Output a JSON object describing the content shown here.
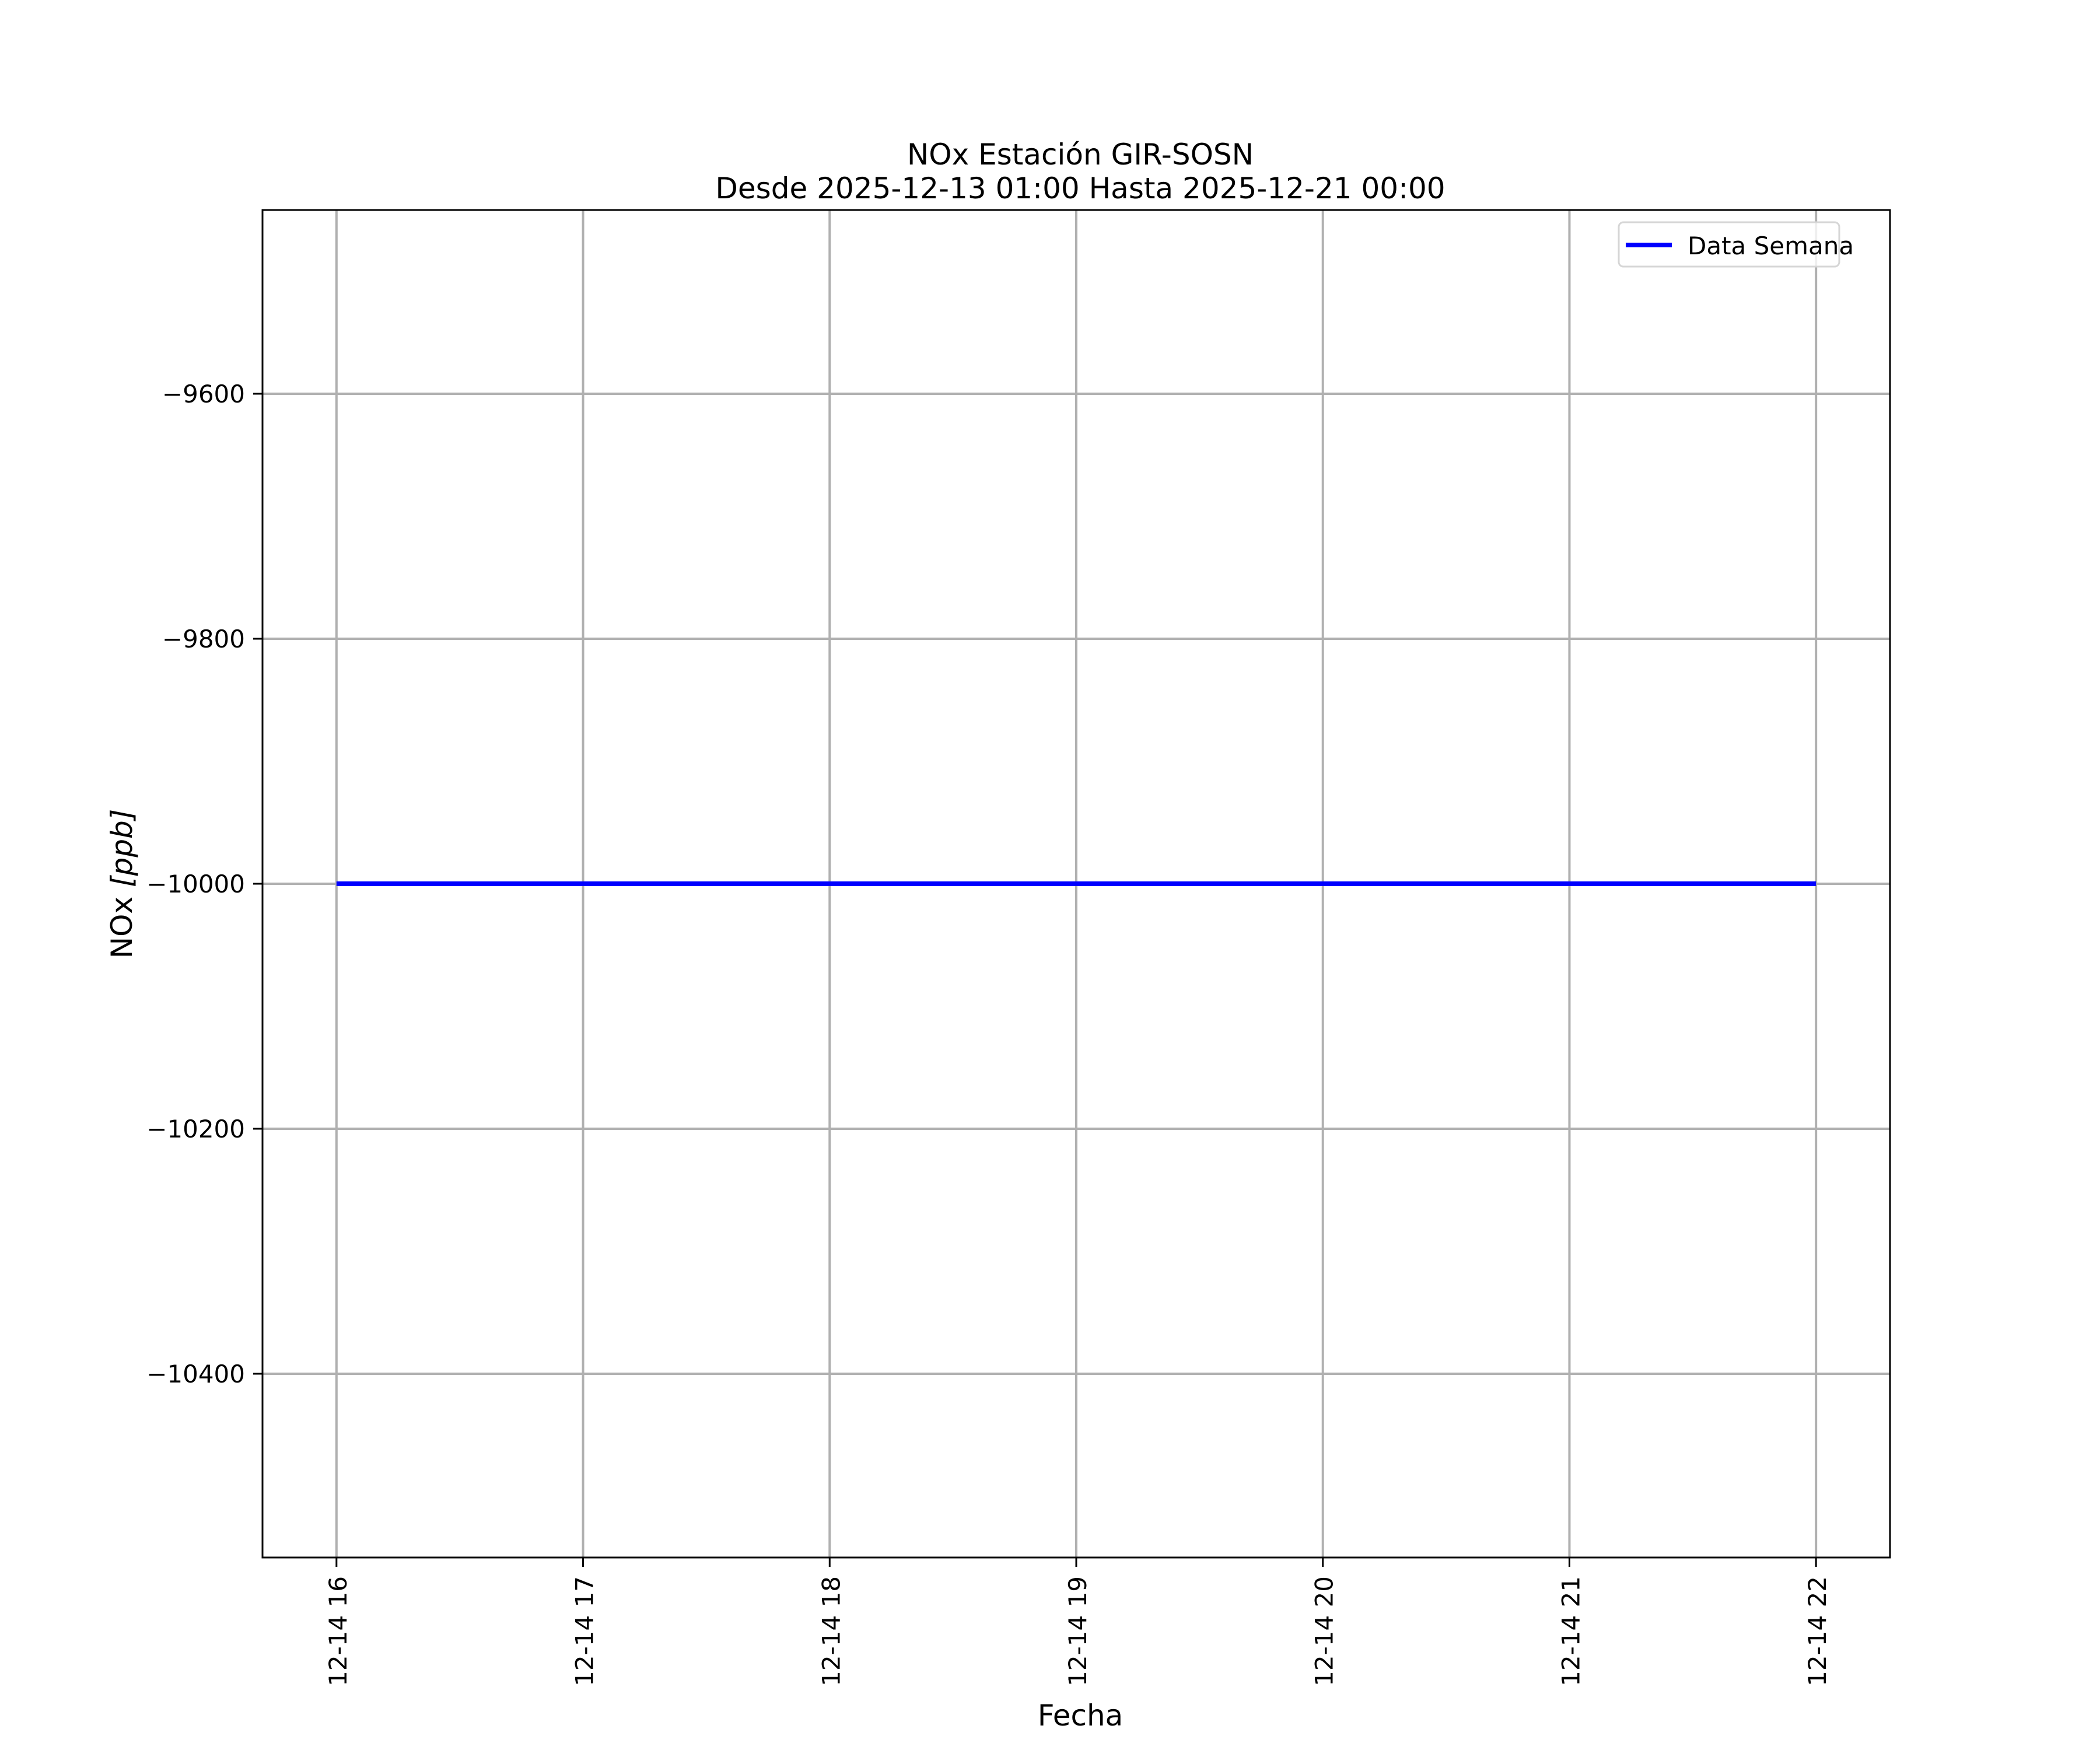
{
  "chart_data": {
    "type": "line",
    "title": "NOx Estación GIR-SOSN",
    "subtitle": "Desde 2025-12-13 01:00 Hasta 2025-12-21 00:00",
    "xlabel": "Fecha",
    "ylabel": "NOx [ppb]",
    "ylabel_main": "NOx ",
    "ylabel_unit": "[ppb]",
    "xlim": [
      15.7,
      22.3
    ],
    "ylim": [
      -10550,
      -9450
    ],
    "x_ticks": [
      16,
      17,
      18,
      19,
      20,
      21,
      22
    ],
    "x_tick_labels": [
      "12-14 16",
      "12-14 17",
      "12-14 18",
      "12-14 19",
      "12-14 20",
      "12-14 21",
      "12-14 22"
    ],
    "y_ticks": [
      -9600,
      -9800,
      -10000,
      -10200,
      -10400
    ],
    "y_tick_labels": [
      "−9600",
      "−9800",
      "−10000",
      "−10200",
      "−10400"
    ],
    "grid": true,
    "legend_position": "top-right",
    "series": [
      {
        "name": "Data Semana",
        "color": "#0000ff",
        "x": [
          16,
          22
        ],
        "y": [
          -10000,
          -10000
        ]
      }
    ]
  }
}
